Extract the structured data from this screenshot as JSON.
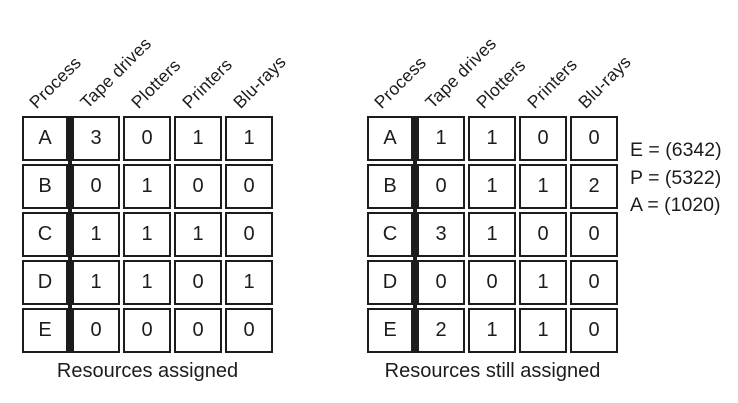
{
  "column_headers": [
    "Process",
    "Tape drives",
    "Plotters",
    "Printers",
    "Blu-rays"
  ],
  "left_table": {
    "caption": "Resources assigned",
    "rows": [
      {
        "process": "A",
        "values": [
          3,
          0,
          1,
          1
        ]
      },
      {
        "process": "B",
        "values": [
          0,
          1,
          0,
          0
        ]
      },
      {
        "process": "C",
        "values": [
          1,
          1,
          1,
          0
        ]
      },
      {
        "process": "D",
        "values": [
          1,
          1,
          0,
          1
        ]
      },
      {
        "process": "E",
        "values": [
          0,
          0,
          0,
          0
        ]
      }
    ]
  },
  "right_table": {
    "caption": "Resources still assigned",
    "rows": [
      {
        "process": "A",
        "values": [
          1,
          1,
          0,
          0
        ]
      },
      {
        "process": "B",
        "values": [
          0,
          1,
          1,
          2
        ]
      },
      {
        "process": "C",
        "values": [
          3,
          1,
          0,
          0
        ]
      },
      {
        "process": "D",
        "values": [
          0,
          0,
          1,
          0
        ]
      },
      {
        "process": "E",
        "values": [
          2,
          1,
          1,
          0
        ]
      }
    ]
  },
  "annotations": [
    "E = (6342)",
    "P = (5322)",
    "A = (1020)"
  ],
  "colors": {
    "ink": "#1c1c1c",
    "background": "#ffffff"
  }
}
